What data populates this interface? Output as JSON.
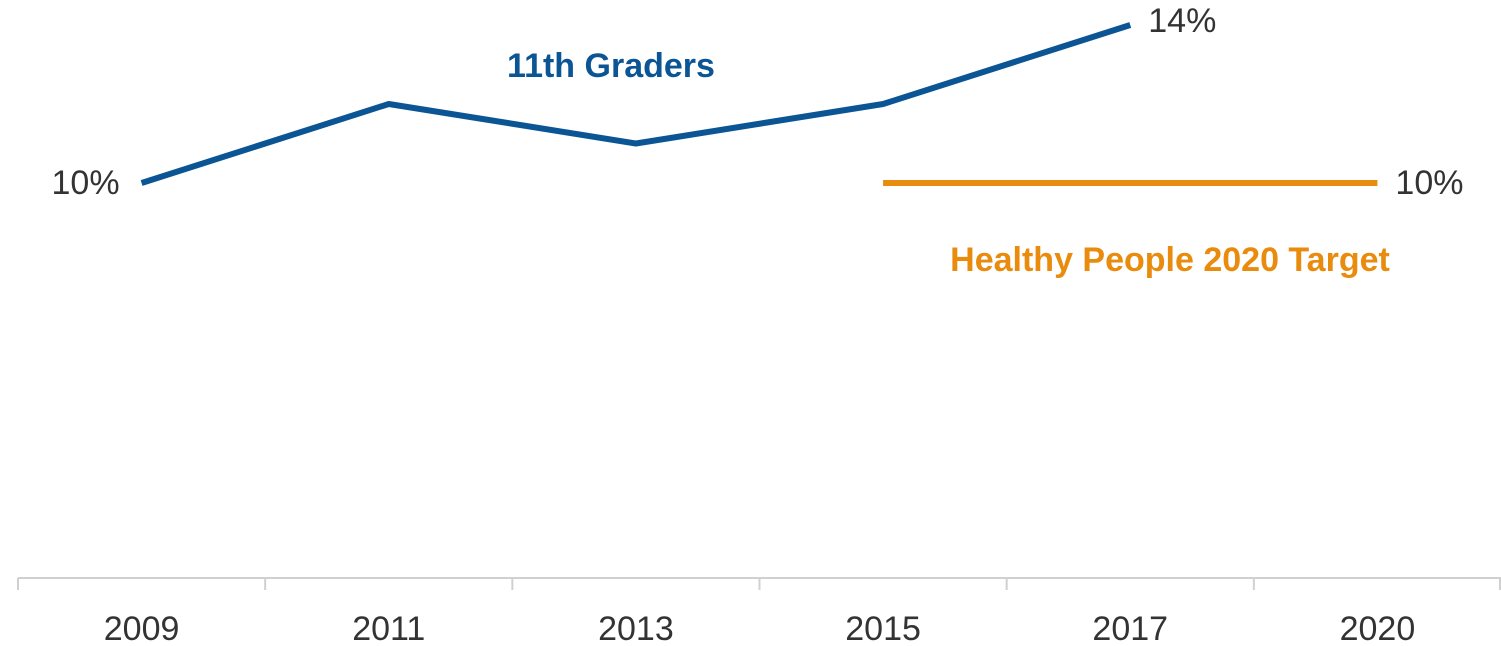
{
  "chart_data": {
    "type": "line",
    "categories": [
      "2009",
      "2011",
      "2013",
      "2015",
      "2017",
      "2020"
    ],
    "series": [
      {
        "name": "11th Graders",
        "color": "#0b5594",
        "values": [
          10,
          12,
          11,
          12,
          14,
          null
        ],
        "value_labels": [
          "10%",
          null,
          null,
          null,
          "14%",
          null
        ]
      },
      {
        "name": "Healthy People 2020 Target",
        "color": "#e98b0c",
        "values": [
          null,
          null,
          null,
          10,
          10,
          10
        ],
        "value_labels": [
          null,
          null,
          null,
          null,
          null,
          "10%"
        ]
      }
    ],
    "ylim": [
      0,
      14
    ]
  }
}
